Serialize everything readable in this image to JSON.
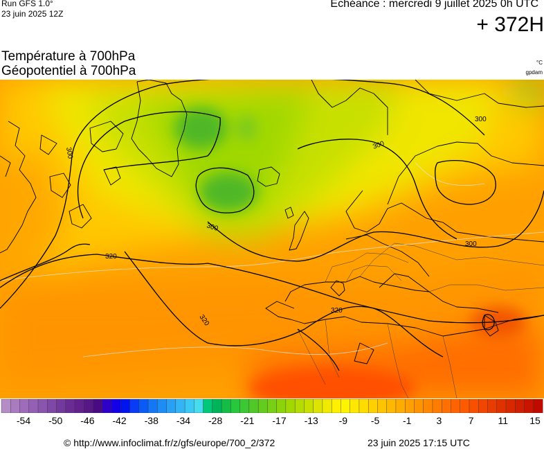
{
  "header": {
    "run": "Run GFS 1.0°",
    "run_date": "23 juin 2025 12Z",
    "echeance": "Echéance : mercredi 9 juillet 2025 0h UTC",
    "lead": "+ 372H"
  },
  "titles": {
    "line1": "Température à 700hPa",
    "line2": "Géopotentiel à 700hPa",
    "unit1": "°C",
    "unit2": "gpdam"
  },
  "contour_labels": [
    "300",
    "300",
    "300",
    "300",
    "320",
    "320",
    "320",
    "300"
  ],
  "colorbar": {
    "ticks": [
      "-54",
      "-50",
      "-46",
      "-42",
      "-38",
      "-34",
      "-28",
      "-21",
      "-17",
      "-13",
      "-9",
      "-5",
      "-1",
      "3",
      "7",
      "11",
      "15"
    ],
    "colors": [
      "#b48cc6",
      "#a97cc0",
      "#9e6cba",
      "#9560b4",
      "#8a55ac",
      "#7f48a6",
      "#74399c",
      "#6a2c94",
      "#62218c",
      "#561884",
      "#4a0a84",
      "#2e00c8",
      "#1400e6",
      "#0014f0",
      "#0a3cf5",
      "#0a5af5",
      "#1478f5",
      "#1e8cf5",
      "#28a0f5",
      "#32b4f5",
      "#3cc8f5",
      "#46dcf0",
      "#00c878",
      "#00b45a",
      "#14be46",
      "#28c83c",
      "#3cc832",
      "#50c828",
      "#64cc1e",
      "#78d014",
      "#8cd40a",
      "#a0d800",
      "#b4dc00",
      "#c8e000",
      "#dce400",
      "#f0ea00",
      "#fff000",
      "#fff400",
      "#ffe800",
      "#ffdc00",
      "#ffd000",
      "#ffc400",
      "#ffb800",
      "#ffac00",
      "#ffa000",
      "#ff9400",
      "#ff8800",
      "#ff7c00",
      "#ff7000",
      "#ff6400",
      "#ff5a00",
      "#f85000",
      "#f04600",
      "#e83c00",
      "#e03200",
      "#d82800",
      "#d01e00",
      "#c81400",
      "#c00a00"
    ]
  },
  "footer": {
    "url": "© http://www.infoclimat.fr/z/gfs/europe/700_2/372",
    "issued": "23 juin 2025 17:15 UTC"
  }
}
